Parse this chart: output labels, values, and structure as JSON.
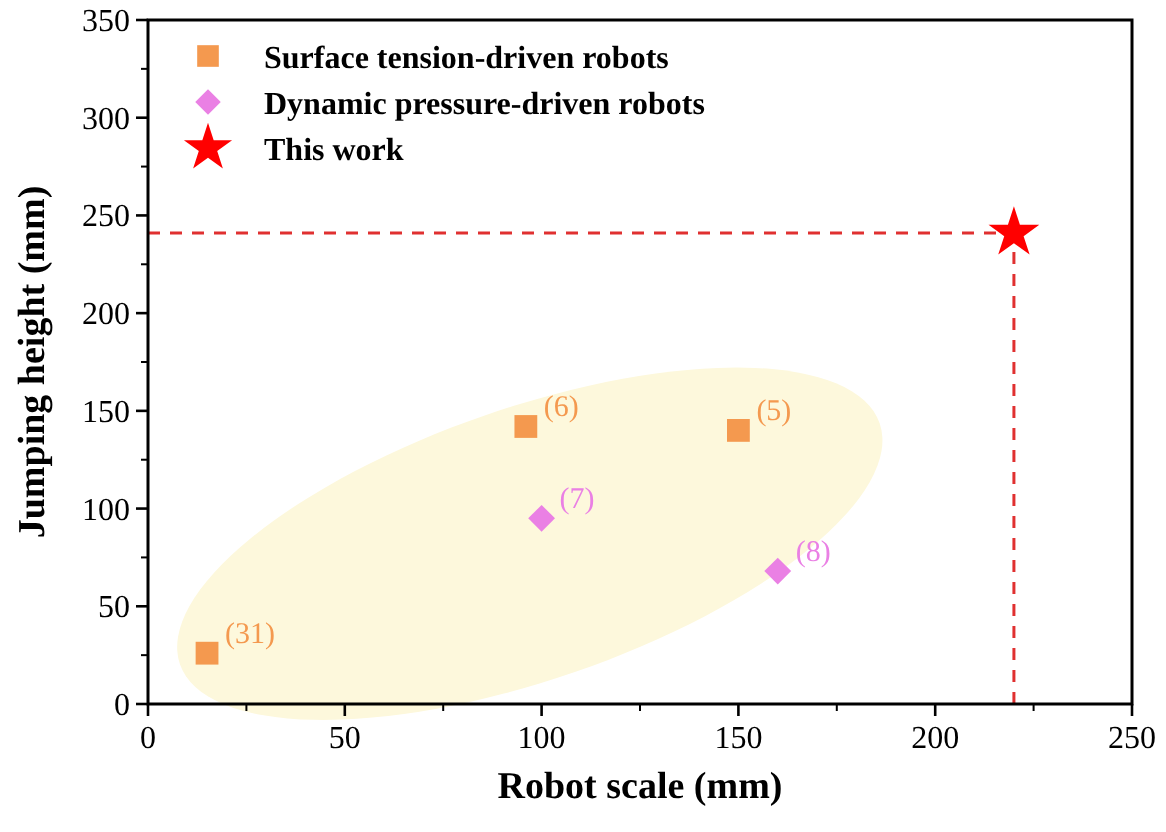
{
  "chart_data": {
    "type": "scatter",
    "xlabel": "Robot scale (mm)",
    "ylabel": "Jumping height (mm)",
    "xlim": [
      0,
      250
    ],
    "ylim": [
      0,
      350
    ],
    "xticks": [
      0,
      50,
      100,
      150,
      200,
      250
    ],
    "yticks": [
      0,
      50,
      100,
      150,
      200,
      250,
      300,
      350
    ],
    "grid": false,
    "legend": "top left",
    "series": [
      {
        "name": "Surface tension-driven robots",
        "color": "#f4994f",
        "marker": "square",
        "x": [
          15,
          96,
          150
        ],
        "values": [
          26,
          142,
          140
        ]
      },
      {
        "name": "Dynamic pressure-driven robots",
        "color": "#ea80e4",
        "marker": "diamond",
        "x": [
          100,
          160
        ],
        "values": [
          95,
          68
        ]
      },
      {
        "name": "This work",
        "color": "#ff0000",
        "marker": "star",
        "x": [
          220
        ],
        "values": [
          241
        ]
      }
    ],
    "ref_lines": [
      {
        "axis": "x",
        "value": 220,
        "color": "#e03030",
        "line_style": "dashed"
      },
      {
        "axis": "y",
        "value": 241,
        "color": "#e03030",
        "line_style": "dashed"
      }
    ],
    "annotations": [
      {
        "text": "(31)",
        "x": 15,
        "y": 26
      },
      {
        "text": "(6)",
        "x": 96,
        "y": 142
      },
      {
        "text": "(5)",
        "x": 150,
        "y": 140
      },
      {
        "text": "(7)",
        "x": 100,
        "y": 95
      },
      {
        "text": "(8)",
        "x": 160,
        "y": 68
      }
    ]
  }
}
